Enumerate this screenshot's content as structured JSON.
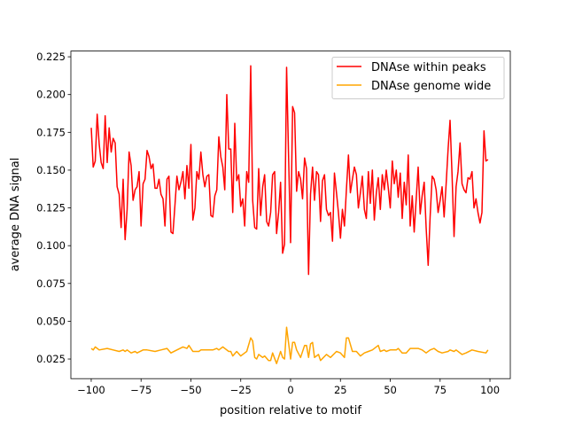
{
  "chart_data": {
    "type": "line",
    "title": "",
    "xlabel": "position relative to motif",
    "ylabel": "average DNA signal",
    "xlim": [
      -110.2,
      110.2
    ],
    "ylim": [
      0.012,
      0.2288
    ],
    "xticks": [
      -100,
      -75,
      -50,
      -25,
      0,
      25,
      50,
      75,
      100
    ],
    "xtick_labels": [
      "−100",
      "−75",
      "−50",
      "−25",
      "0",
      "25",
      "50",
      "75",
      "100"
    ],
    "yticks": [
      0.025,
      0.05,
      0.075,
      0.1,
      0.125,
      0.15,
      0.175,
      0.2,
      0.225
    ],
    "ytick_labels": [
      "0.025",
      "0.050",
      "0.075",
      "0.100",
      "0.125",
      "0.150",
      "0.175",
      "0.200",
      "0.225"
    ],
    "grid": false,
    "legend_position": "top-right",
    "series": [
      {
        "name": "DNAse within peaks",
        "color": "#ff0000",
        "points": [
          [
            -100,
            0.178
          ],
          [
            -99,
            0.152
          ],
          [
            -98,
            0.156
          ],
          [
            -97,
            0.187
          ],
          [
            -96,
            0.167
          ],
          [
            -95,
            0.155
          ],
          [
            -94,
            0.151
          ],
          [
            -93,
            0.186
          ],
          [
            -92,
            0.155
          ],
          [
            -91,
            0.178
          ],
          [
            -90,
            0.162
          ],
          [
            -89,
            0.171
          ],
          [
            -88,
            0.168
          ],
          [
            -87,
            0.139
          ],
          [
            -86,
            0.134
          ],
          [
            -85,
            0.112
          ],
          [
            -84,
            0.144
          ],
          [
            -83,
            0.104
          ],
          [
            -82,
            0.124
          ],
          [
            -81,
            0.162
          ],
          [
            -80,
            0.153
          ],
          [
            -79,
            0.13
          ],
          [
            -78,
            0.137
          ],
          [
            -77,
            0.139
          ],
          [
            -76,
            0.149
          ],
          [
            -75,
            0.113
          ],
          [
            -74,
            0.141
          ],
          [
            -73,
            0.144
          ],
          [
            -72,
            0.163
          ],
          [
            -71,
            0.159
          ],
          [
            -70,
            0.151
          ],
          [
            -69,
            0.154
          ],
          [
            -68,
            0.138
          ],
          [
            -67,
            0.138
          ],
          [
            -66,
            0.144
          ],
          [
            -65,
            0.134
          ],
          [
            -64,
            0.131
          ],
          [
            -63,
            0.113
          ],
          [
            -62,
            0.144
          ],
          [
            -61,
            0.146
          ],
          [
            -60,
            0.109
          ],
          [
            -59,
            0.108
          ],
          [
            -58,
            0.127
          ],
          [
            -57,
            0.146
          ],
          [
            -56,
            0.137
          ],
          [
            -55,
            0.142
          ],
          [
            -54,
            0.149
          ],
          [
            -53,
            0.131
          ],
          [
            -52,
            0.153
          ],
          [
            -51,
            0.138
          ],
          [
            -50,
            0.167
          ],
          [
            -49,
            0.117
          ],
          [
            -48,
            0.125
          ],
          [
            -47,
            0.149
          ],
          [
            -46,
            0.144
          ],
          [
            -45,
            0.162
          ],
          [
            -44,
            0.147
          ],
          [
            -43,
            0.139
          ],
          [
            -42,
            0.146
          ],
          [
            -41,
            0.147
          ],
          [
            -40,
            0.12
          ],
          [
            -39,
            0.119
          ],
          [
            -38,
            0.133
          ],
          [
            -37,
            0.137
          ],
          [
            -36,
            0.172
          ],
          [
            -35,
            0.159
          ],
          [
            -34,
            0.152
          ],
          [
            -33,
            0.137
          ],
          [
            -32,
            0.2
          ],
          [
            -31,
            0.164
          ],
          [
            -30,
            0.164
          ],
          [
            -29,
            0.122
          ],
          [
            -28,
            0.181
          ],
          [
            -27,
            0.143
          ],
          [
            -26,
            0.147
          ],
          [
            -25,
            0.126
          ],
          [
            -24,
            0.131
          ],
          [
            -23,
            0.113
          ],
          [
            -22,
            0.149
          ],
          [
            -21,
            0.142
          ],
          [
            -20,
            0.219
          ],
          [
            -19,
            0.13
          ],
          [
            -18,
            0.112
          ],
          [
            -17,
            0.111
          ],
          [
            -16,
            0.151
          ],
          [
            -15,
            0.12
          ],
          [
            -14,
            0.139
          ],
          [
            -13,
            0.147
          ],
          [
            -12,
            0.116
          ],
          [
            -11,
            0.113
          ],
          [
            -10,
            0.122
          ],
          [
            -9,
            0.147
          ],
          [
            -8,
            0.149
          ],
          [
            -7,
            0.108
          ],
          [
            -6,
            0.122
          ],
          [
            -5,
            0.142
          ],
          [
            -4,
            0.095
          ],
          [
            -3,
            0.101
          ],
          [
            -2,
            0.218
          ],
          [
            -1,
            0.16
          ],
          [
            0,
            0.102
          ],
          [
            1,
            0.192
          ],
          [
            2,
            0.188
          ],
          [
            3,
            0.136
          ],
          [
            4,
            0.149
          ],
          [
            5,
            0.144
          ],
          [
            6,
            0.131
          ],
          [
            7,
            0.158
          ],
          [
            8,
            0.151
          ],
          [
            9,
            0.081
          ],
          [
            10,
            0.134
          ],
          [
            11,
            0.152
          ],
          [
            12,
            0.13
          ],
          [
            13,
            0.149
          ],
          [
            14,
            0.147
          ],
          [
            15,
            0.116
          ],
          [
            16,
            0.143
          ],
          [
            17,
            0.147
          ],
          [
            18,
            0.124
          ],
          [
            19,
            0.12
          ],
          [
            20,
            0.122
          ],
          [
            21,
            0.103
          ],
          [
            22,
            0.148
          ],
          [
            23,
            0.135
          ],
          [
            24,
            0.122
          ],
          [
            25,
            0.105
          ],
          [
            26,
            0.124
          ],
          [
            27,
            0.113
          ],
          [
            28,
            0.137
          ],
          [
            29,
            0.16
          ],
          [
            30,
            0.135
          ],
          [
            31,
            0.144
          ],
          [
            32,
            0.152
          ],
          [
            33,
            0.147
          ],
          [
            34,
            0.125
          ],
          [
            35,
            0.135
          ],
          [
            36,
            0.146
          ],
          [
            37,
            0.124
          ],
          [
            38,
            0.118
          ],
          [
            39,
            0.149
          ],
          [
            40,
            0.128
          ],
          [
            41,
            0.15
          ],
          [
            42,
            0.117
          ],
          [
            43,
            0.135
          ],
          [
            44,
            0.145
          ],
          [
            45,
            0.124
          ],
          [
            46,
            0.147
          ],
          [
            47,
            0.137
          ],
          [
            48,
            0.15
          ],
          [
            49,
            0.138
          ],
          [
            50,
            0.125
          ],
          [
            51,
            0.156
          ],
          [
            52,
            0.141
          ],
          [
            53,
            0.15
          ],
          [
            54,
            0.132
          ],
          [
            55,
            0.148
          ],
          [
            56,
            0.118
          ],
          [
            57,
            0.142
          ],
          [
            58,
            0.127
          ],
          [
            59,
            0.16
          ],
          [
            60,
            0.113
          ],
          [
            61,
            0.133
          ],
          [
            62,
            0.109
          ],
          [
            63,
            0.131
          ],
          [
            64,
            0.152
          ],
          [
            65,
            0.121
          ],
          [
            66,
            0.133
          ],
          [
            67,
            0.142
          ],
          [
            68,
            0.112
          ],
          [
            69,
            0.087
          ],
          [
            70,
            0.119
          ],
          [
            71,
            0.146
          ],
          [
            72,
            0.144
          ],
          [
            73,
            0.137
          ],
          [
            74,
            0.122
          ],
          [
            75,
            0.13
          ],
          [
            76,
            0.139
          ],
          [
            77,
            0.119
          ],
          [
            78,
            0.14
          ],
          [
            79,
            0.164
          ],
          [
            80,
            0.183
          ],
          [
            81,
            0.146
          ],
          [
            82,
            0.106
          ],
          [
            83,
            0.139
          ],
          [
            84,
            0.149
          ],
          [
            85,
            0.168
          ],
          [
            86,
            0.141
          ],
          [
            87,
            0.137
          ],
          [
            88,
            0.135
          ],
          [
            89,
            0.145
          ],
          [
            90,
            0.144
          ],
          [
            91,
            0.149
          ],
          [
            92,
            0.125
          ],
          [
            93,
            0.131
          ],
          [
            94,
            0.122
          ],
          [
            95,
            0.115
          ],
          [
            96,
            0.122
          ],
          [
            97,
            0.176
          ],
          [
            98,
            0.156
          ],
          [
            99,
            0.157
          ]
        ]
      },
      {
        "name": "DNAse genome wide",
        "color": "#ffa500",
        "points": [
          [
            -100,
            0.032
          ],
          [
            -99,
            0.031
          ],
          [
            -98,
            0.033
          ],
          [
            -96,
            0.031
          ],
          [
            -92,
            0.032
          ],
          [
            -86,
            0.03
          ],
          [
            -84,
            0.031
          ],
          [
            -83,
            0.03
          ],
          [
            -82,
            0.031
          ],
          [
            -80,
            0.029
          ],
          [
            -78,
            0.03
          ],
          [
            -77,
            0.029
          ],
          [
            -74,
            0.031
          ],
          [
            -72,
            0.031
          ],
          [
            -68,
            0.03
          ],
          [
            -65,
            0.031
          ],
          [
            -62,
            0.032
          ],
          [
            -60,
            0.029
          ],
          [
            -57,
            0.031
          ],
          [
            -54,
            0.033
          ],
          [
            -52,
            0.032
          ],
          [
            -51,
            0.034
          ],
          [
            -49,
            0.03
          ],
          [
            -46,
            0.03
          ],
          [
            -45,
            0.031
          ],
          [
            -39,
            0.031
          ],
          [
            -37,
            0.032
          ],
          [
            -36,
            0.031
          ],
          [
            -34,
            0.033
          ],
          [
            -31,
            0.03
          ],
          [
            -30,
            0.03
          ],
          [
            -29,
            0.027
          ],
          [
            -27,
            0.03
          ],
          [
            -25,
            0.027
          ],
          [
            -23,
            0.029
          ],
          [
            -22,
            0.03
          ],
          [
            -20,
            0.039
          ],
          [
            -19,
            0.037
          ],
          [
            -18,
            0.026
          ],
          [
            -17,
            0.025
          ],
          [
            -16,
            0.028
          ],
          [
            -14,
            0.026
          ],
          [
            -13,
            0.027
          ],
          [
            -11,
            0.024
          ],
          [
            -10,
            0.024
          ],
          [
            -9,
            0.029
          ],
          [
            -7,
            0.022
          ],
          [
            -5,
            0.03
          ],
          [
            -4,
            0.026
          ],
          [
            -3,
            0.025
          ],
          [
            -2,
            0.046
          ],
          [
            0,
            0.025
          ],
          [
            1,
            0.036
          ],
          [
            2,
            0.036
          ],
          [
            3,
            0.031
          ],
          [
            5,
            0.026
          ],
          [
            7,
            0.034
          ],
          [
            8,
            0.034
          ],
          [
            9,
            0.026
          ],
          [
            10,
            0.035
          ],
          [
            11,
            0.036
          ],
          [
            12,
            0.026
          ],
          [
            14,
            0.028
          ],
          [
            15,
            0.024
          ],
          [
            18,
            0.028
          ],
          [
            20,
            0.026
          ],
          [
            23,
            0.03
          ],
          [
            25,
            0.029
          ],
          [
            27,
            0.026
          ],
          [
            28,
            0.039
          ],
          [
            29,
            0.039
          ],
          [
            31,
            0.03
          ],
          [
            33,
            0.03
          ],
          [
            35,
            0.027
          ],
          [
            37,
            0.029
          ],
          [
            39,
            0.03
          ],
          [
            41,
            0.031
          ],
          [
            44,
            0.034
          ],
          [
            45,
            0.03
          ],
          [
            47,
            0.031
          ],
          [
            48,
            0.03
          ],
          [
            50,
            0.031
          ],
          [
            53,
            0.031
          ],
          [
            54,
            0.032
          ],
          [
            56,
            0.029
          ],
          [
            58,
            0.029
          ],
          [
            60,
            0.032
          ],
          [
            62,
            0.032
          ],
          [
            64,
            0.032
          ],
          [
            66,
            0.031
          ],
          [
            68,
            0.029
          ],
          [
            70,
            0.031
          ],
          [
            72,
            0.032
          ],
          [
            74,
            0.03
          ],
          [
            76,
            0.029
          ],
          [
            79,
            0.03
          ],
          [
            80,
            0.031
          ],
          [
            82,
            0.03
          ],
          [
            83,
            0.031
          ],
          [
            86,
            0.028
          ],
          [
            88,
            0.029
          ],
          [
            91,
            0.031
          ],
          [
            94,
            0.03
          ],
          [
            98,
            0.029
          ],
          [
            99,
            0.031
          ]
        ]
      }
    ]
  }
}
